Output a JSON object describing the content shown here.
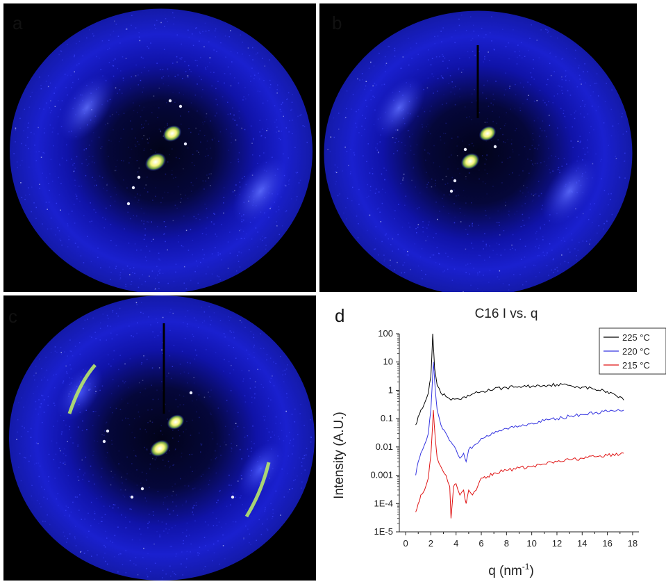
{
  "panels": {
    "a": {
      "label": "a"
    },
    "b": {
      "label": "b"
    },
    "c": {
      "label": "c"
    },
    "d": {
      "label": "d"
    }
  },
  "colors": {
    "background": "#000000",
    "pattern_blue": "#1a1fd6",
    "spot_yellow": "#f4f47a",
    "arc_green": "#b8e86a",
    "series_225": "#000000",
    "series_220": "#3434e0",
    "series_215": "#e01414"
  },
  "chart_data": {
    "type": "line",
    "title": "C16 I vs. q",
    "xlabel": "q (nm",
    "xlabel_sup": "-1",
    "xlabel_end": ")",
    "ylabel": "Intensity (A.U.)",
    "xlim": [
      -0.5,
      18.5
    ],
    "ylim": [
      1e-05,
      100
    ],
    "yscale": "log",
    "xticks": [
      "0",
      "2",
      "4",
      "6",
      "8",
      "10",
      "12",
      "14",
      "16",
      "18"
    ],
    "yticks": [
      "100",
      "10",
      "1",
      "0.1",
      "0.01",
      "0.001",
      "1E-4",
      "1E-5"
    ],
    "legend_position": "top-right",
    "series": [
      {
        "name": "225 °C",
        "color": "#000000",
        "x": [
          0.8,
          1.0,
          1.2,
          1.5,
          1.8,
          2.0,
          2.15,
          2.3,
          2.5,
          2.8,
          3.2,
          3.6,
          4.0,
          4.4,
          4.8,
          5.2,
          6.0,
          7.0,
          8.0,
          9.0,
          10.0,
          11.0,
          12.0,
          13.0,
          14.0,
          15.0,
          16.0,
          16.5,
          17.0,
          17.3
        ],
        "y": [
          0.06,
          0.12,
          0.2,
          0.35,
          0.8,
          3.0,
          100,
          6.0,
          1.5,
          0.8,
          0.6,
          0.45,
          0.5,
          0.48,
          0.55,
          0.7,
          0.9,
          1.1,
          1.25,
          1.35,
          1.4,
          1.5,
          1.6,
          1.5,
          1.3,
          1.1,
          0.9,
          0.75,
          0.6,
          0.45
        ]
      },
      {
        "name": "220 °C",
        "color": "#3434e0",
        "x": [
          0.8,
          1.0,
          1.2,
          1.5,
          1.8,
          2.0,
          2.2,
          2.35,
          2.5,
          2.8,
          3.2,
          3.6,
          4.0,
          4.3,
          4.6,
          4.8,
          5.0,
          5.5,
          6.0,
          7.0,
          8.0,
          9.0,
          10.0,
          11.0,
          12.0,
          13.0,
          14.0,
          15.0,
          16.0,
          17.0,
          17.3
        ],
        "y": [
          0.001,
          0.003,
          0.006,
          0.012,
          0.03,
          0.2,
          10,
          1.0,
          0.2,
          0.06,
          0.03,
          0.015,
          0.008,
          0.004,
          0.006,
          0.003,
          0.008,
          0.012,
          0.02,
          0.03,
          0.045,
          0.055,
          0.07,
          0.085,
          0.1,
          0.12,
          0.14,
          0.16,
          0.18,
          0.19,
          0.2
        ]
      },
      {
        "name": "215 °C",
        "color": "#e01414",
        "x": [
          0.8,
          1.0,
          1.2,
          1.5,
          1.8,
          2.0,
          2.2,
          2.35,
          2.5,
          2.8,
          3.2,
          3.5,
          3.6,
          3.8,
          4.0,
          4.3,
          4.6,
          4.8,
          5.0,
          5.3,
          5.6,
          6.0,
          6.5,
          7.0,
          8.0,
          9.0,
          10.0,
          11.0,
          12.0,
          13.0,
          14.0,
          15.0,
          16.0,
          17.0,
          17.3
        ],
        "y": [
          5e-05,
          0.0001,
          0.0002,
          0.0003,
          0.0008,
          0.005,
          0.2,
          0.02,
          0.004,
          0.002,
          0.001,
          0.0004,
          3e-05,
          0.0004,
          0.0005,
          0.0002,
          0.0003,
          0.0001,
          0.0003,
          0.0002,
          0.0003,
          0.0008,
          0.0009,
          0.0012,
          0.0015,
          0.0018,
          0.002,
          0.0025,
          0.003,
          0.0035,
          0.004,
          0.0045,
          0.005,
          0.0055,
          0.006
        ]
      }
    ]
  }
}
